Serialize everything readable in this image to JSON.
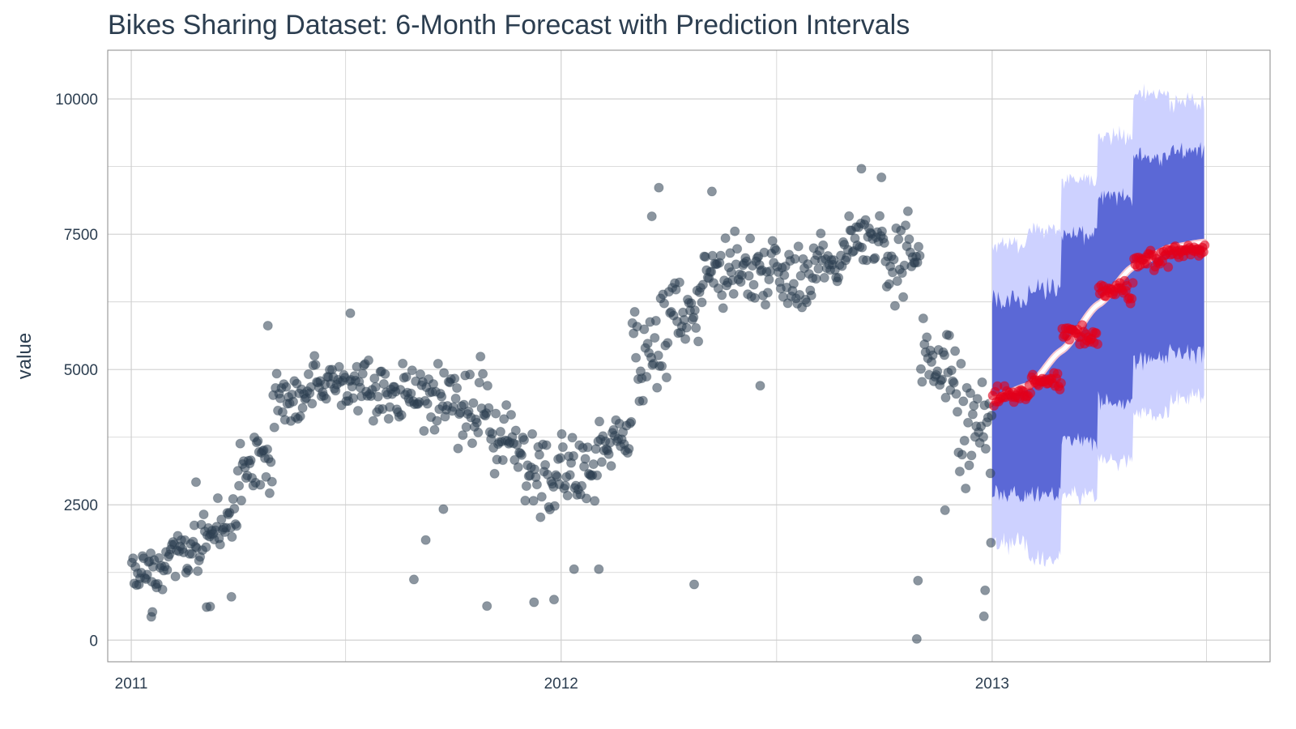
{
  "chart_data": {
    "type": "scatter",
    "title": "Bikes Sharing Dataset: 6-Month Forecast with Prediction Intervals",
    "xlabel": "",
    "ylabel": "value",
    "x_ticks": [
      "2011",
      "2012",
      "2013"
    ],
    "x_tick_years": [
      2011,
      2012,
      2013
    ],
    "xlim": [
      "2010-12-12",
      "2013-08-25"
    ],
    "ylim": [
      -400,
      10900
    ],
    "y_ticks": [
      0,
      2500,
      5000,
      7500,
      10000
    ],
    "grid": true,
    "legend": "none",
    "colors": {
      "actual": "#2c3e50",
      "forecast_points": "#e3001b",
      "forecast_line": "#ffffff",
      "forecast_line_outline": "#f5c6cf",
      "pi_80": "#5b68d6",
      "pi_95": "#cdd1ff",
      "grid": "#d0d0d0",
      "panel_border": "#8a8a8a"
    },
    "series": [
      {
        "name": "actual",
        "kind": "points",
        "monthly_profile": [
          {
            "month": "2011-01",
            "x_mid": "2011-01-16",
            "mean": 1300,
            "spread": 450
          },
          {
            "month": "2011-02",
            "x_mid": "2011-02-14",
            "mean": 1650,
            "spread": 500
          },
          {
            "month": "2011-03",
            "x_mid": "2011-03-16",
            "mean": 2100,
            "spread": 700
          },
          {
            "month": "2011-04",
            "x_mid": "2011-04-15",
            "mean": 3200,
            "spread": 900
          },
          {
            "month": "2011-05",
            "x_mid": "2011-05-16",
            "mean": 4400,
            "spread": 700
          },
          {
            "month": "2011-06",
            "x_mid": "2011-06-15",
            "mean": 4800,
            "spread": 500
          },
          {
            "month": "2011-07",
            "x_mid": "2011-07-16",
            "mean": 4650,
            "spread": 600
          },
          {
            "month": "2011-08",
            "x_mid": "2011-08-16",
            "mean": 4600,
            "spread": 550
          },
          {
            "month": "2011-09",
            "x_mid": "2011-09-15",
            "mean": 4550,
            "spread": 700
          },
          {
            "month": "2011-10",
            "x_mid": "2011-10-16",
            "mean": 4300,
            "spread": 900
          },
          {
            "month": "2011-11",
            "x_mid": "2011-11-15",
            "mean": 3700,
            "spread": 700
          },
          {
            "month": "2011-12",
            "x_mid": "2011-12-16",
            "mean": 3100,
            "spread": 800
          },
          {
            "month": "2012-01",
            "x_mid": "2012-01-16",
            "mean": 3150,
            "spread": 800
          },
          {
            "month": "2012-02",
            "x_mid": "2012-02-15",
            "mean": 3600,
            "spread": 700
          },
          {
            "month": "2012-03",
            "x_mid": "2012-03-16",
            "mean": 5300,
            "spread": 1200
          },
          {
            "month": "2012-04",
            "x_mid": "2012-04-15",
            "mean": 6200,
            "spread": 900
          },
          {
            "month": "2012-05",
            "x_mid": "2012-05-16",
            "mean": 6800,
            "spread": 800
          },
          {
            "month": "2012-06",
            "x_mid": "2012-06-15",
            "mean": 6900,
            "spread": 800
          },
          {
            "month": "2012-07",
            "x_mid": "2012-07-16",
            "mean": 6750,
            "spread": 700
          },
          {
            "month": "2012-08",
            "x_mid": "2012-08-16",
            "mean": 7000,
            "spread": 600
          },
          {
            "month": "2012-09",
            "x_mid": "2012-09-15",
            "mean": 7500,
            "spread": 600
          },
          {
            "month": "2012-10",
            "x_mid": "2012-10-16",
            "mean": 6900,
            "spread": 1100
          },
          {
            "month": "2012-11",
            "x_mid": "2012-11-15",
            "mean": 5100,
            "spread": 900
          },
          {
            "month": "2012-12",
            "x_mid": "2012-12-16",
            "mean": 3900,
            "spread": 1400
          }
        ],
        "highlights": [
          {
            "x": "2011-01-18",
            "y": 430
          },
          {
            "x": "2011-01-19",
            "y": 520
          },
          {
            "x": "2011-03-06",
            "y": 610
          },
          {
            "x": "2011-03-09",
            "y": 620
          },
          {
            "x": "2011-03-27",
            "y": 800
          },
          {
            "x": "2011-02-25",
            "y": 2920
          },
          {
            "x": "2011-04-27",
            "y": 5810
          },
          {
            "x": "2011-07-06",
            "y": 6040
          },
          {
            "x": "2011-08-29",
            "y": 1120
          },
          {
            "x": "2011-09-08",
            "y": 1850
          },
          {
            "x": "2011-09-23",
            "y": 2420
          },
          {
            "x": "2011-10-30",
            "y": 630
          },
          {
            "x": "2011-12-09",
            "y": 700
          },
          {
            "x": "2011-12-26",
            "y": 750
          },
          {
            "x": "2012-01-12",
            "y": 1310
          },
          {
            "x": "2012-02-02",
            "y": 1310
          },
          {
            "x": "2012-03-24",
            "y": 8360
          },
          {
            "x": "2012-03-18",
            "y": 7830
          },
          {
            "x": "2012-05-08",
            "y": 8290
          },
          {
            "x": "2012-04-23",
            "y": 1030
          },
          {
            "x": "2012-06-18",
            "y": 4700
          },
          {
            "x": "2012-09-12",
            "y": 8710
          },
          {
            "x": "2012-09-29",
            "y": 8550
          },
          {
            "x": "2012-10-29",
            "y": 22
          },
          {
            "x": "2012-10-30",
            "y": 1100
          },
          {
            "x": "2012-12-25",
            "y": 440
          },
          {
            "x": "2012-12-26",
            "y": 920
          },
          {
            "x": "2012-11-22",
            "y": 2400
          },
          {
            "x": "2012-12-31",
            "y": 1800
          }
        ]
      },
      {
        "name": "forecast",
        "kind": "line+points",
        "x_start": "2013-01-01",
        "x_end": "2013-06-30",
        "line": [
          {
            "x": "2013-01-01",
            "y": 4450
          },
          {
            "x": "2013-02-01",
            "y": 4700
          },
          {
            "x": "2013-03-01",
            "y": 5350
          },
          {
            "x": "2013-04-01",
            "y": 6200
          },
          {
            "x": "2013-05-01",
            "y": 6900
          },
          {
            "x": "2013-06-01",
            "y": 7250
          },
          {
            "x": "2013-06-30",
            "y": 7350
          }
        ],
        "monthly_points": [
          {
            "month": "2013-01",
            "mean": 4500,
            "spread": 260
          },
          {
            "month": "2013-02",
            "mean": 4750,
            "spread": 260
          },
          {
            "month": "2013-03",
            "mean": 5650,
            "spread": 280
          },
          {
            "month": "2013-04",
            "mean": 6450,
            "spread": 300
          },
          {
            "month": "2013-05",
            "mean": 7050,
            "spread": 260
          },
          {
            "month": "2013-06",
            "mean": 7200,
            "spread": 180
          }
        ]
      },
      {
        "name": "prediction_interval_80",
        "kind": "ribbon",
        "monthly_bounds": [
          {
            "month": "2013-01",
            "lo": 2700,
            "hi": 6300
          },
          {
            "month": "2013-02",
            "lo": 2700,
            "hi": 6500
          },
          {
            "month": "2013-03",
            "lo": 3700,
            "hi": 7500
          },
          {
            "month": "2013-04",
            "lo": 4400,
            "hi": 8200
          },
          {
            "month": "2013-05",
            "lo": 5200,
            "hi": 8900
          },
          {
            "month": "2013-06",
            "lo": 5300,
            "hi": 9000
          }
        ]
      },
      {
        "name": "prediction_interval_95",
        "kind": "ribbon",
        "monthly_bounds": [
          {
            "month": "2013-01",
            "lo": 1800,
            "hi": 7300
          },
          {
            "month": "2013-02",
            "lo": 1500,
            "hi": 7600
          },
          {
            "month": "2013-03",
            "lo": 2700,
            "hi": 8500
          },
          {
            "month": "2013-04",
            "lo": 3300,
            "hi": 9300
          },
          {
            "month": "2013-05",
            "lo": 4200,
            "hi": 10100
          },
          {
            "month": "2013-06",
            "lo": 4500,
            "hi": 9900
          }
        ]
      }
    ]
  }
}
